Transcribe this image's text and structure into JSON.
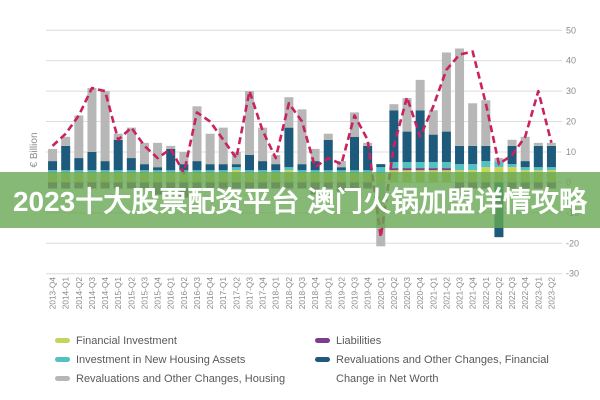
{
  "page": {
    "background": "#ffffff"
  },
  "overlay": {
    "text": "2023十大股票配资平台 澳门火锅加盟详情攻略",
    "background_color": "#68a852",
    "opacity": 0.8,
    "text_color": "#ffffff"
  },
  "chart_data": {
    "type": "bar",
    "subtype": "stacked-bar-with-line",
    "title": "",
    "ylabel": "€ Billion",
    "grid": true,
    "legend_position": "bottom",
    "y_axis": {
      "min": -30,
      "max": 50,
      "tick_step": 10,
      "ticks": [
        50,
        40,
        30,
        20,
        10,
        0,
        -10,
        -20,
        -30
      ]
    },
    "categories": [
      "2013-Q4",
      "2014-Q1",
      "2014-Q2",
      "2014-Q3",
      "2014-Q4",
      "2015-Q1",
      "2015-Q2",
      "2015-Q3",
      "2015-Q4",
      "2016-Q1",
      "2016-Q2",
      "2016-Q3",
      "2016-Q4",
      "2017-Q1",
      "2017-Q2",
      "2017-Q3",
      "2017-Q4",
      "2018-Q1",
      "2018-Q2",
      "2018-Q3",
      "2018-Q4",
      "2019-Q1",
      "2019-Q2",
      "2019-Q3",
      "2019-Q4",
      "2020-Q1",
      "2020-Q2",
      "2020-Q3",
      "2020-Q4",
      "2021-Q1",
      "2021-Q2",
      "2021-Q3",
      "2021-Q4",
      "2022-Q1",
      "2022-Q2",
      "2022-Q3",
      "2022-Q4",
      "2023-Q1",
      "2023-Q2"
    ],
    "series": [
      {
        "key": "financial-investment",
        "name": "Financial Investment",
        "color": "#c7d45c",
        "values": [
          3,
          3,
          3,
          3,
          3,
          3,
          3,
          3,
          3,
          3,
          3,
          3,
          3,
          3,
          4,
          3,
          3,
          3,
          4,
          3,
          3,
          3,
          3,
          3,
          3,
          3,
          4,
          4,
          4,
          4,
          4,
          4,
          4,
          5,
          5,
          5,
          4,
          4,
          4
        ]
      },
      {
        "key": "liabilities",
        "name": "Liabilities",
        "color": "#7d3f8d",
        "values": [
          -2,
          -2,
          -2,
          -2,
          -2,
          -2,
          -2,
          -2,
          -4,
          -2,
          -5,
          -2,
          -2,
          -2,
          -2,
          -2,
          -2,
          -2,
          -2,
          -2,
          -4,
          -2,
          -3,
          -2,
          -2,
          0,
          0.7,
          0.7,
          0.7,
          0.7,
          0.7,
          -2,
          -2,
          -2,
          0,
          -2,
          -2,
          -2,
          -2
        ]
      },
      {
        "key": "new-housing",
        "name": "Investment in New Housing Assets",
        "color": "#55c0c2",
        "values": [
          1,
          1,
          1,
          1,
          1,
          1,
          1,
          1,
          1,
          1,
          1,
          1,
          1,
          1,
          1,
          1,
          1,
          1,
          1,
          1,
          1,
          1,
          1,
          1,
          1,
          2,
          2,
          2,
          2,
          2,
          2,
          2,
          2,
          2,
          2,
          1,
          1,
          1,
          1
        ]
      },
      {
        "key": "reval-financial",
        "name": "Revaluations and Other Changes, Financial",
        "color": "#1d5a7b",
        "values": [
          3,
          8,
          4,
          6,
          3,
          10,
          4,
          2,
          1,
          7,
          2,
          3,
          2,
          2,
          1,
          5,
          3,
          2,
          13,
          2,
          3,
          10,
          1,
          11,
          8,
          1,
          17,
          10,
          17,
          9,
          10,
          6,
          6,
          5,
          -18,
          6,
          2,
          7,
          7
        ]
      },
      {
        "key": "reval-housing",
        "name": "Revaluations and Other Changes, Housing",
        "color": "#b7b7b7",
        "values": [
          4,
          3,
          14,
          21,
          23,
          2,
          10,
          7,
          8,
          1,
          4,
          18,
          10,
          12,
          4,
          21,
          11,
          3,
          10,
          18,
          4,
          2,
          2,
          8,
          1,
          -21,
          2,
          11,
          10,
          8,
          26,
          32,
          14,
          15,
          1,
          2,
          8,
          1,
          1
        ]
      }
    ],
    "line_series": {
      "key": "net-worth",
      "name": "Change in Net Worth",
      "color": "#cb2160",
      "style": "dashed",
      "values": [
        12,
        16,
        22,
        31,
        30,
        14,
        18,
        12,
        8,
        11,
        3,
        23,
        20,
        14,
        8,
        30,
        17,
        8,
        26,
        20,
        5,
        8,
        6,
        22,
        14,
        -18,
        12,
        28,
        15,
        25,
        37,
        42,
        43,
        26,
        6,
        9,
        15,
        30,
        13
      ]
    },
    "legend": {
      "column1": [
        "Financial Investment",
        "Investment in New Housing Assets",
        "Revaluations and Other Changes, Housing"
      ],
      "column2": [
        "Liabilities",
        "Revaluations and Other Changes, Financial",
        "Change in Net Worth"
      ]
    },
    "colors": {
      "grid": "#dcdcdc",
      "axis_text": "#8c8c8c",
      "legend_text": "#595959"
    }
  }
}
